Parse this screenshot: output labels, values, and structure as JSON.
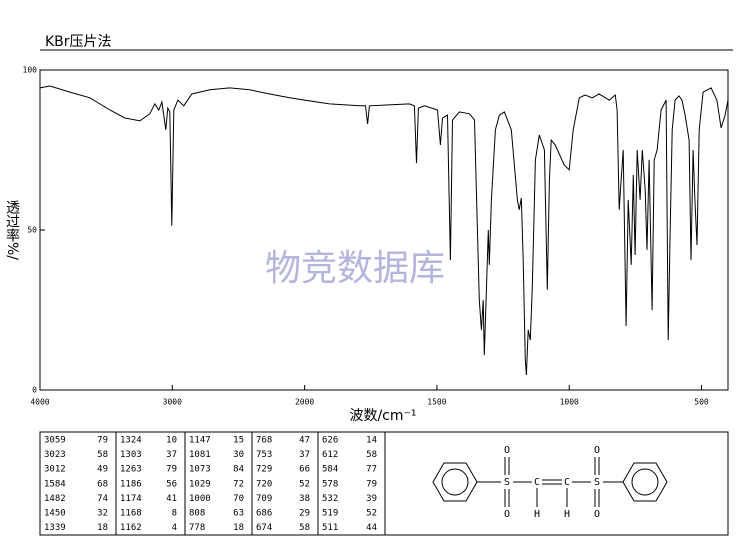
{
  "chart_data": {
    "type": "line",
    "title": "KBr压片法",
    "xlabel": "波数/cm⁻¹",
    "ylabel": "透过率%/",
    "annotations": [
      "物竞数据库"
    ],
    "color": "#000000",
    "xlim": [
      4000,
      400
    ],
    "xticks": [
      4000,
      3000,
      2000,
      1500,
      1000,
      500
    ],
    "ylim": [
      0,
      100
    ],
    "yticks": [
      0,
      50,
      100
    ],
    "x": [
      4000,
      3925,
      3774,
      3623,
      3472,
      3358,
      3245,
      3170,
      3132,
      3102,
      3079,
      3049,
      3034,
      3019,
      3004,
      2989,
      2958,
      2913,
      2853,
      2717,
      2566,
      2415,
      2264,
      2113,
      2000,
      1906,
      1792,
      1770,
      1762,
      1755,
      1604,
      1585,
      1577,
      1570,
      1547,
      1498,
      1487,
      1479,
      1460,
      1449,
      1441,
      1415,
      1377,
      1358,
      1340,
      1332,
      1325,
      1321,
      1313,
      1306,
      1302,
      1294,
      1279,
      1264,
      1245,
      1219,
      1196,
      1189,
      1181,
      1174,
      1166,
      1162,
      1155,
      1147,
      1140,
      1128,
      1113,
      1094,
      1083,
      1075,
      1068,
      1053,
      1019,
      1000,
      985,
      962,
      940,
      913,
      887,
      849,
      826,
      819,
      811,
      804,
      796,
      785,
      777,
      766,
      758,
      751,
      743,
      732,
      724,
      713,
      706,
      698,
      687,
      679,
      668,
      653,
      634,
      626,
      619,
      611,
      600,
      585,
      574,
      562,
      547,
      540,
      532,
      525,
      517,
      509,
      494,
      464,
      442,
      426,
      411,
      400
    ],
    "values": [
      94.4,
      95,
      93.1,
      91.3,
      87.5,
      85,
      84.1,
      86.3,
      89.4,
      87.5,
      90,
      81.3,
      88.1,
      86.9,
      51.3,
      87.5,
      90.6,
      88.8,
      92.5,
      93.8,
      94.4,
      93.8,
      92.5,
      91.3,
      90.6,
      89.4,
      88.8,
      88.8,
      83.1,
      88.8,
      89.4,
      88.8,
      70.9,
      88.1,
      88.8,
      87.5,
      76.6,
      85,
      85.9,
      40.6,
      84.4,
      86.9,
      86.3,
      84.4,
      28.1,
      18.8,
      28.1,
      10.9,
      31.3,
      50,
      39.1,
      59.4,
      81.3,
      85.9,
      86.9,
      81.3,
      59.4,
      56.3,
      60,
      40.6,
      9.4,
      4.7,
      18.8,
      15.6,
      31.3,
      71.9,
      79.7,
      75,
      31.3,
      65.6,
      78.1,
      76.6,
      70.3,
      68.8,
      81.3,
      91.3,
      92.2,
      91.3,
      92.5,
      90.6,
      92.2,
      87.5,
      56.3,
      65.6,
      75,
      20,
      59.4,
      39.1,
      67.2,
      42.2,
      75,
      59.4,
      75,
      62.5,
      43.8,
      71.9,
      25,
      71.9,
      75,
      87.5,
      90.6,
      15.6,
      46.9,
      81.3,
      90.6,
      91.9,
      90.6,
      85.9,
      78.1,
      40.6,
      75,
      59.4,
      45.3,
      81.3,
      93.1,
      94.4,
      90.6,
      81.9,
      85.9,
      90.6
    ]
  },
  "peak_table": {
    "columns": [
      [
        [
          3059,
          79
        ],
        [
          3023,
          58
        ],
        [
          3012,
          49
        ],
        [
          1584,
          68
        ],
        [
          1482,
          74
        ],
        [
          1450,
          32
        ],
        [
          1339,
          18
        ]
      ],
      [
        [
          1324,
          10
        ],
        [
          1303,
          37
        ],
        [
          1263,
          79
        ],
        [
          1186,
          56
        ],
        [
          1174,
          41
        ],
        [
          1168,
          8
        ],
        [
          1162,
          4
        ]
      ],
      [
        [
          1147,
          15
        ],
        [
          1081,
          30
        ],
        [
          1073,
          84
        ],
        [
          1029,
          72
        ],
        [
          1000,
          70
        ],
        [
          808,
          63
        ],
        [
          778,
          18
        ]
      ],
      [
        [
          768,
          47
        ],
        [
          753,
          37
        ],
        [
          729,
          66
        ],
        [
          720,
          52
        ],
        [
          709,
          38
        ],
        [
          686,
          29
        ],
        [
          674,
          58
        ]
      ],
      [
        [
          626,
          14
        ],
        [
          612,
          58
        ],
        [
          584,
          77
        ],
        [
          578,
          79
        ],
        [
          532,
          39
        ],
        [
          519,
          52
        ],
        [
          511,
          44
        ]
      ]
    ]
  },
  "structure": {
    "atoms": [
      "O",
      "S",
      "O",
      "C",
      "H",
      "C",
      "H",
      "O",
      "S",
      "O"
    ]
  }
}
